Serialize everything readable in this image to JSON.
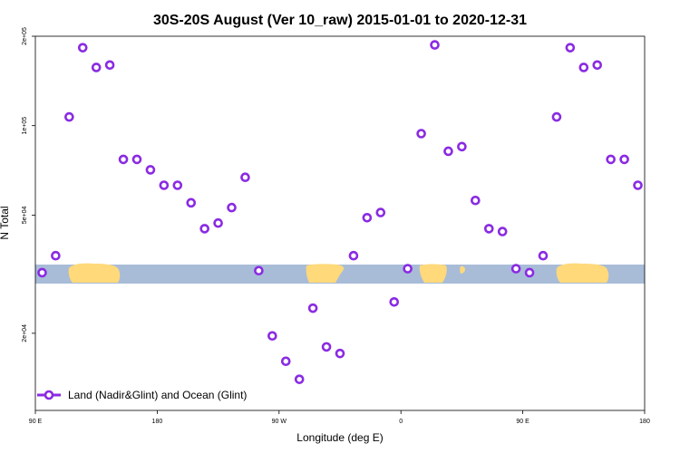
{
  "chart_data": {
    "type": "scatter",
    "title": "30S-20S August (Ver 10_raw)   2015-01-01 to 2020-12-31",
    "xlabel": "Longitude (deg E)",
    "ylabel": "N Total",
    "x_ticks": [
      {
        "value": 90,
        "label": "90 E"
      },
      {
        "value": 180,
        "label": "180"
      },
      {
        "value": 270,
        "label": "90 W"
      },
      {
        "value": 360,
        "label": "0"
      },
      {
        "value": 450,
        "label": "90 E"
      },
      {
        "value": 540,
        "label": "180"
      }
    ],
    "y_ticks": [
      {
        "value": 20000,
        "label": "2e+04"
      },
      {
        "value": 50000,
        "label": "5e+04"
      },
      {
        "value": 100000,
        "label": "1e+05"
      },
      {
        "value": 200000,
        "label": "2e+05"
      }
    ],
    "xlim": [
      90,
      540
    ],
    "ylim": [
      11000,
      200000
    ],
    "y_scale": "log",
    "grid": false,
    "legend_position": "bottom-left",
    "series": [
      {
        "name": "Land (Nadir&Glint) and Ocean (Glint)",
        "color": "#8a2be2",
        "x": [
          95,
          105,
          115,
          125,
          135,
          145,
          155,
          165,
          175,
          185,
          195,
          205,
          215,
          225,
          235,
          245,
          255,
          265,
          275,
          285,
          295,
          305,
          315,
          325,
          335,
          345,
          355,
          365,
          375,
          385,
          395,
          405,
          415,
          425,
          435,
          445,
          455,
          465,
          475,
          485,
          495,
          505,
          515,
          525,
          535
        ],
        "y": [
          32000,
          36500,
          107000,
          183000,
          157000,
          160000,
          77000,
          77000,
          71000,
          63000,
          63000,
          55000,
          45000,
          47000,
          53000,
          67000,
          32500,
          19600,
          16100,
          14000,
          24300,
          18000,
          17100,
          36500,
          49000,
          51000,
          25500,
          33000,
          94000,
          187000,
          82000,
          85000,
          56000,
          45000,
          44000,
          33000,
          32000,
          36500,
          107000,
          183000,
          157000,
          160000,
          77000,
          77000,
          63000
        ]
      }
    ]
  },
  "map_strip": {
    "land_color": "#ffd97a",
    "ocean_color": "#a8bcd8"
  }
}
